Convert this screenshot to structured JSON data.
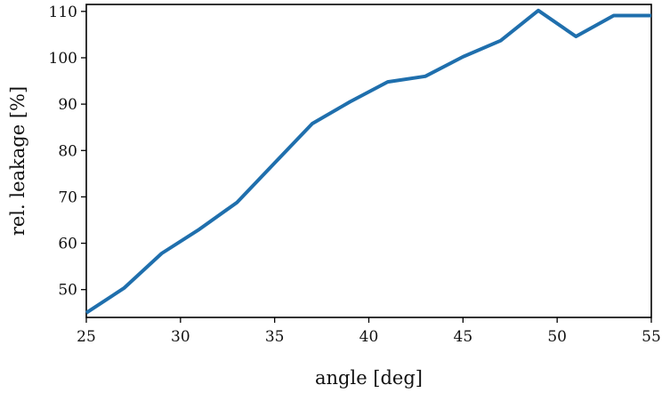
{
  "chart_data": {
    "type": "line",
    "title": "",
    "xlabel": "angle [deg]",
    "ylabel": "rel. leakage [%]",
    "xlim": [
      25,
      55
    ],
    "ylim": [
      44,
      111.5
    ],
    "xticks": [
      25,
      30,
      35,
      40,
      45,
      50,
      55
    ],
    "yticks": [
      50,
      60,
      70,
      80,
      90,
      100,
      110
    ],
    "grid": false,
    "legend": "none",
    "series": [
      {
        "color": "#1f6fad",
        "x": [
          25,
          27,
          29,
          31,
          33,
          35,
          37,
          39,
          41,
          43,
          45,
          47,
          49,
          51,
          53,
          55
        ],
        "y": [
          45,
          50.3,
          57.8,
          63,
          68.8,
          77.3,
          85.8,
          90.5,
          94.8,
          96,
          100.2,
          103.7,
          110.2,
          104.6,
          109.1,
          109.1
        ]
      }
    ]
  }
}
